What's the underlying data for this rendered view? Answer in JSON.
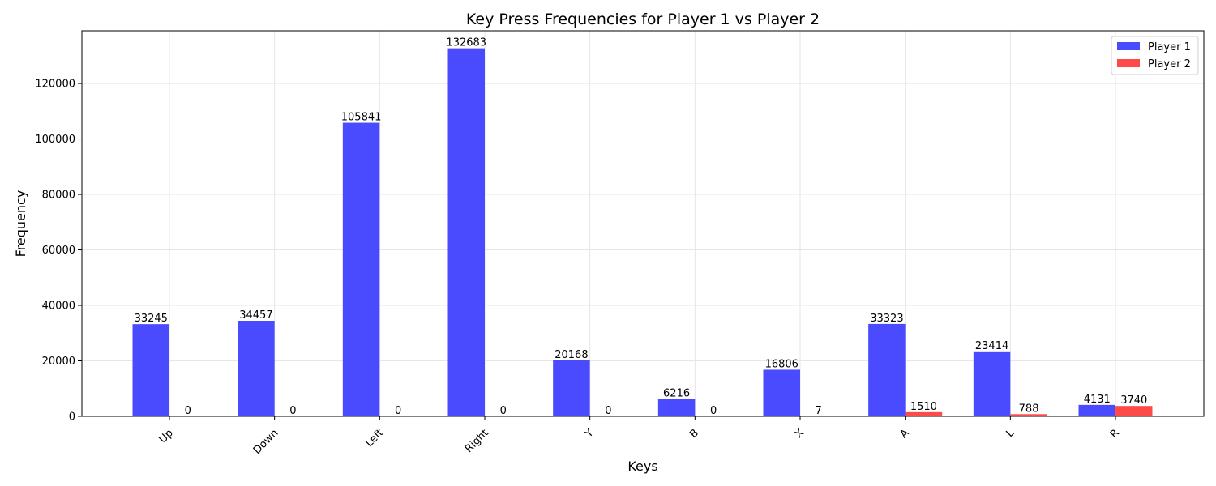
{
  "chart_data": {
    "type": "bar",
    "title": "Key Press Frequencies for Player 1 vs Player 2",
    "xlabel": "Keys",
    "ylabel": "Frequency",
    "categories": [
      "Up",
      "Down",
      "Left",
      "Right",
      "Y",
      "B",
      "X",
      "A",
      "L",
      "R"
    ],
    "series": [
      {
        "name": "Player 1",
        "color": "#4a4aff",
        "values": [
          33245,
          34457,
          105841,
          132683,
          20168,
          6216,
          16806,
          33323,
          23414,
          4131
        ]
      },
      {
        "name": "Player 2",
        "color": "#ff4a4a",
        "values": [
          0,
          0,
          0,
          0,
          0,
          0,
          7,
          1510,
          788,
          3740
        ]
      }
    ],
    "ylim": [
      0,
      139000
    ],
    "yticks": [
      0,
      20000,
      40000,
      60000,
      80000,
      100000,
      120000
    ],
    "grid": true,
    "legend_position": "top-right",
    "xtick_rotation": 45
  }
}
